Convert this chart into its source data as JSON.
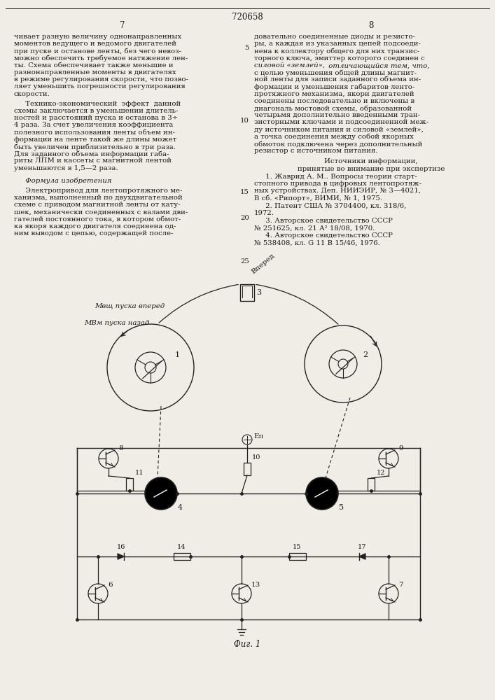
{
  "title": "720658",
  "page_left": "7",
  "page_right": "8",
  "bg_color": "#f0ede6",
  "text_color": "#1a1a1a",
  "line_color": "#222222",
  "figsize": [
    7.07,
    10.0
  ],
  "dpi": 100
}
